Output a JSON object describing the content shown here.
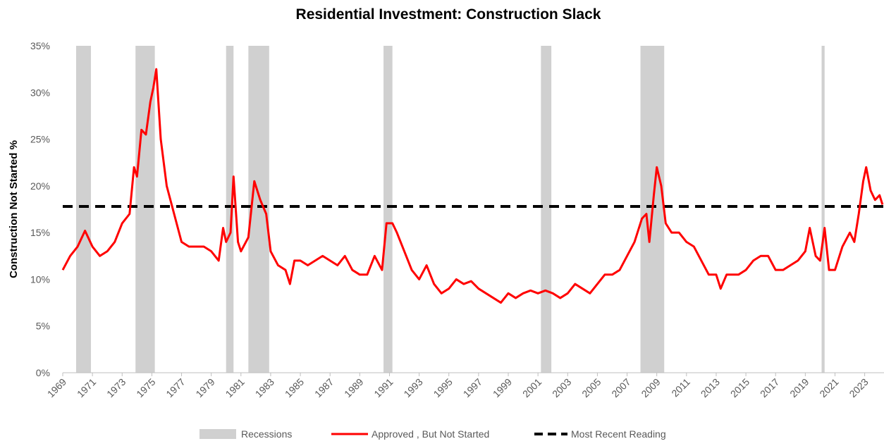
{
  "chart_data": {
    "type": "line",
    "title": "Residential Investment: Construction Slack",
    "y_label": "Construction Not Started %",
    "xlim": [
      1969,
      2024.3
    ],
    "xticks": [
      1969,
      1971,
      1973,
      1975,
      1977,
      1979,
      1981,
      1983,
      1985,
      1987,
      1989,
      1991,
      1993,
      1995,
      1997,
      1999,
      2001,
      2003,
      2005,
      2007,
      2009,
      2011,
      2013,
      2015,
      2017,
      2019,
      2021,
      2023
    ],
    "ylim": [
      0,
      35
    ],
    "yticks": [
      {
        "value": 0,
        "label": "0%"
      },
      {
        "value": 5,
        "label": "5%"
      },
      {
        "value": 10,
        "label": "10%"
      },
      {
        "value": 15,
        "label": "15%"
      },
      {
        "value": 20,
        "label": "20%"
      },
      {
        "value": 25,
        "label": "25%"
      },
      {
        "value": 30,
        "label": "30%"
      },
      {
        "value": 35,
        "label": "35%"
      }
    ],
    "recessions": {
      "name": "Recessions",
      "color": "#d0d0d0",
      "periods": [
        [
          1969.9,
          1970.9
        ],
        [
          1973.9,
          1975.2
        ],
        [
          1980.0,
          1980.5
        ],
        [
          1981.5,
          1982.9
        ],
        [
          1990.6,
          1991.2
        ],
        [
          2001.2,
          2001.9
        ],
        [
          2007.9,
          2009.5
        ],
        [
          2020.1,
          2020.3
        ]
      ]
    },
    "reference_line": {
      "name": "Most Recent Reading",
      "color": "#000000",
      "value": 17.8
    },
    "x": [
      1969.0,
      1969.5,
      1970.0,
      1970.5,
      1971.0,
      1971.5,
      1972.0,
      1972.5,
      1973.0,
      1973.5,
      1973.8,
      1974.0,
      1974.3,
      1974.6,
      1974.9,
      1975.1,
      1975.3,
      1975.6,
      1976.0,
      1976.5,
      1977.0,
      1977.5,
      1978.0,
      1978.5,
      1979.0,
      1979.5,
      1979.8,
      1980.0,
      1980.3,
      1980.5,
      1980.8,
      1981.0,
      1981.5,
      1981.9,
      1982.3,
      1982.7,
      1983.0,
      1983.5,
      1984.0,
      1984.3,
      1984.6,
      1985.0,
      1985.5,
      1986.0,
      1986.5,
      1987.0,
      1987.5,
      1988.0,
      1988.5,
      1989.0,
      1989.5,
      1990.0,
      1990.5,
      1990.8,
      1991.2,
      1991.5,
      1992.0,
      1992.5,
      1993.0,
      1993.5,
      1994.0,
      1994.5,
      1995.0,
      1995.5,
      1996.0,
      1996.5,
      1997.0,
      1997.5,
      1998.0,
      1998.5,
      1999.0,
      1999.5,
      2000.0,
      2000.5,
      2001.0,
      2001.5,
      2002.0,
      2002.5,
      2003.0,
      2003.5,
      2004.0,
      2004.5,
      2005.0,
      2005.5,
      2006.0,
      2006.5,
      2007.0,
      2007.5,
      2008.0,
      2008.3,
      2008.5,
      2008.8,
      2009.0,
      2009.3,
      2009.6,
      2010.0,
      2010.5,
      2011.0,
      2011.5,
      2012.0,
      2012.5,
      2013.0,
      2013.3,
      2013.7,
      2014.0,
      2014.5,
      2015.0,
      2015.5,
      2016.0,
      2016.5,
      2017.0,
      2017.5,
      2018.0,
      2018.5,
      2019.0,
      2019.3,
      2019.7,
      2020.0,
      2020.3,
      2020.6,
      2021.0,
      2021.5,
      2022.0,
      2022.3,
      2022.6,
      2022.9,
      2023.1,
      2023.4,
      2023.7,
      2024.0,
      2024.2
    ],
    "series": [
      {
        "name": "Approved , But Not Started",
        "color": "#ff0000",
        "values": [
          11,
          12.5,
          13.5,
          15.2,
          13.5,
          12.5,
          13,
          14,
          16,
          17,
          22,
          21,
          26,
          25.5,
          29,
          30.5,
          32.5,
          25,
          20,
          17,
          14,
          13.5,
          13.5,
          13.5,
          13,
          12,
          15.5,
          14,
          15,
          21,
          14,
          13,
          14.5,
          20.5,
          18.5,
          17,
          13,
          11.5,
          11,
          9.5,
          12,
          12,
          11.5,
          12,
          12.5,
          12,
          11.5,
          12.5,
          11,
          10.5,
          10.5,
          12.5,
          11,
          16,
          16,
          15,
          13,
          11,
          10,
          11.5,
          9.5,
          8.5,
          9,
          10,
          9.5,
          9.8,
          9,
          8.5,
          8,
          7.5,
          8.5,
          8,
          8.5,
          8.8,
          8.5,
          8.8,
          8.5,
          8,
          8.5,
          9.5,
          9,
          8.5,
          9.5,
          10.5,
          10.5,
          11,
          12.5,
          14,
          16.5,
          17,
          14,
          19,
          22,
          20,
          16,
          15,
          15,
          14,
          13.5,
          12,
          10.5,
          10.5,
          9,
          10.5,
          10.5,
          10.5,
          11,
          12,
          12.5,
          12.5,
          11,
          11,
          11.5,
          12,
          13,
          15.5,
          12.5,
          12,
          15.5,
          11,
          11,
          13.5,
          15,
          14,
          17,
          20.5,
          22,
          19.5,
          18.5,
          19,
          18
        ]
      }
    ]
  }
}
